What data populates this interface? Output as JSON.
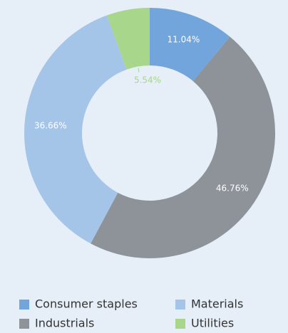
{
  "chart_data": {
    "type": "donut",
    "categories": [
      "Consumer staples",
      "Industrials",
      "Materials",
      "Utilities"
    ],
    "values": [
      11.04,
      46.76,
      36.66,
      5.54
    ],
    "value_labels": [
      "11.04%",
      "46.76%",
      "36.66%",
      "5.54%"
    ],
    "colors": [
      "#71a5dc",
      "#8e9399",
      "#a5c5e8",
      "#a8d68a"
    ],
    "legend": "bottom"
  }
}
